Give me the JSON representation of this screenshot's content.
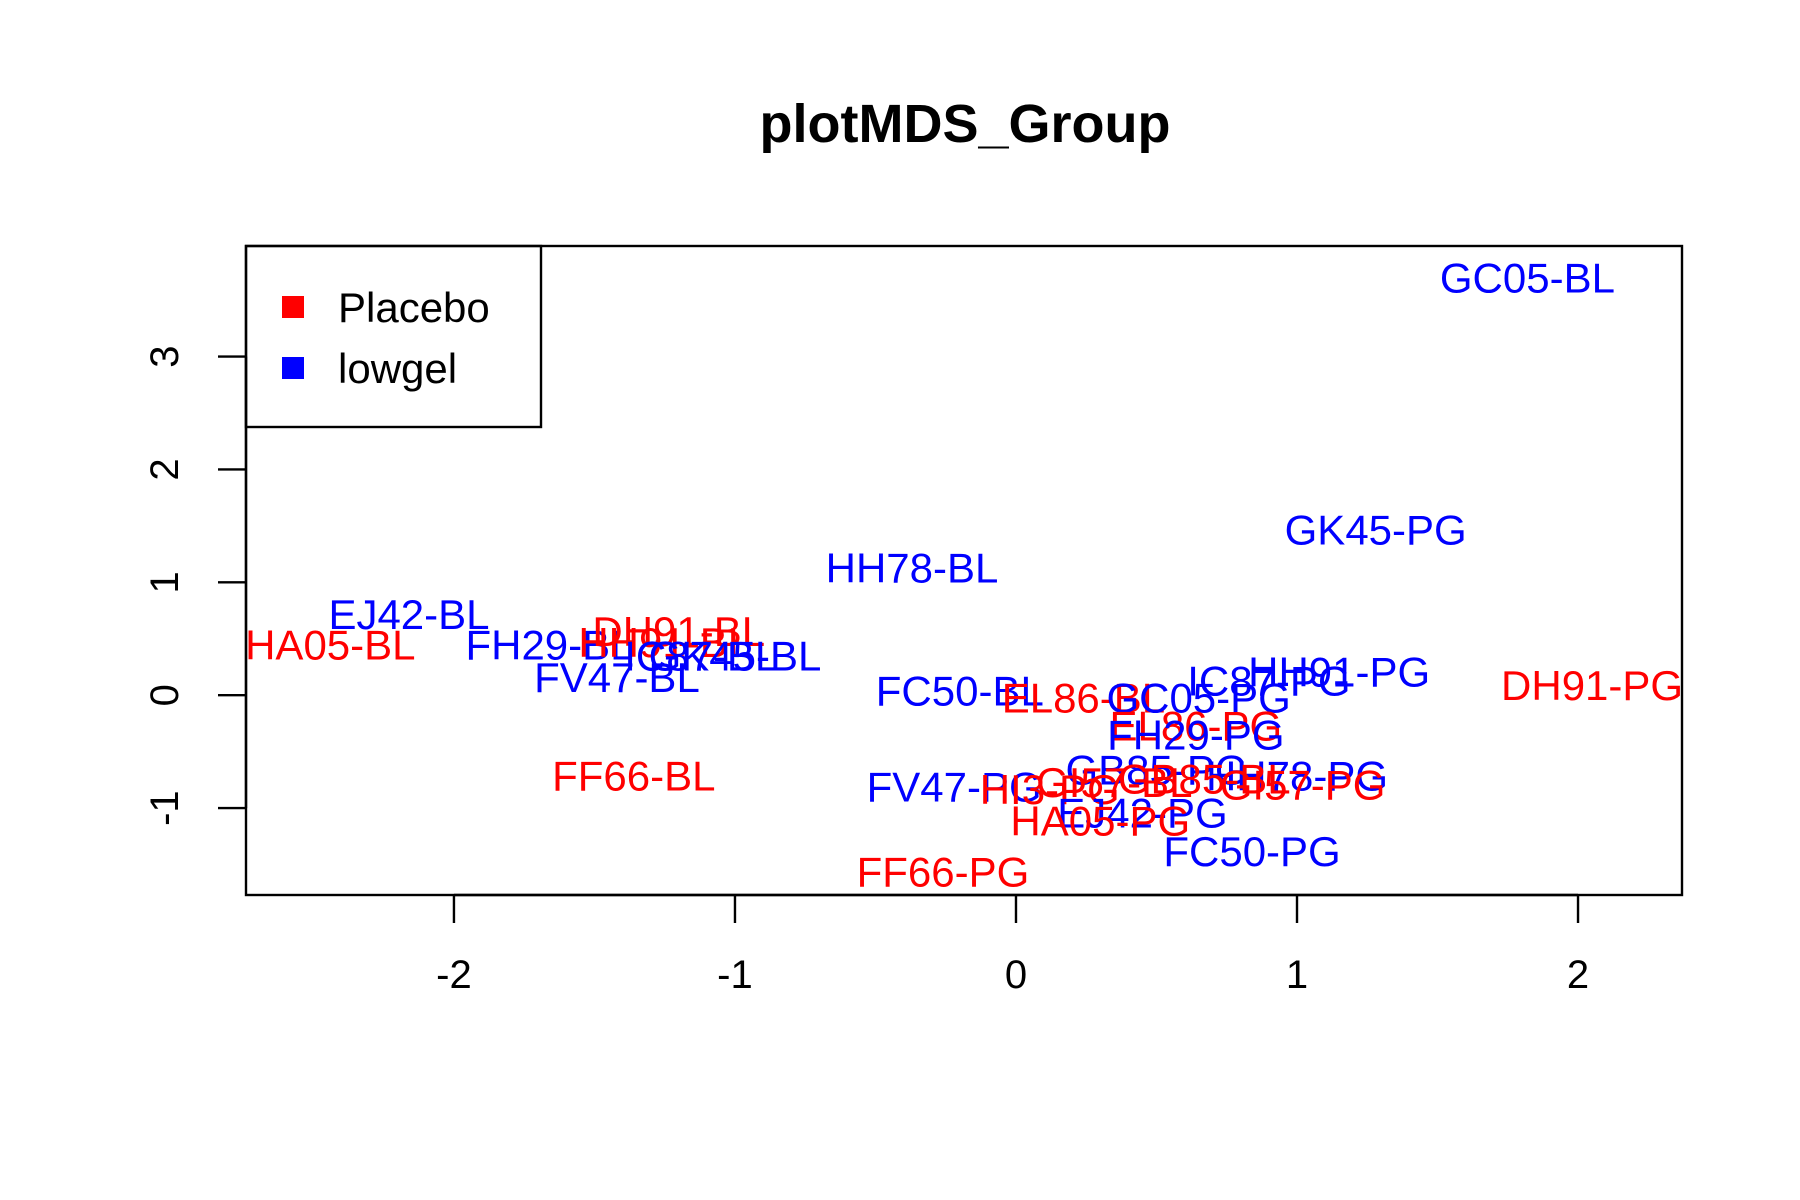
{
  "chart_data": {
    "type": "scatter",
    "title": "plotMDS_Group",
    "xlabel": "",
    "ylabel": "",
    "xlim": [
      -2.74,
      2.37
    ],
    "ylim": [
      -1.77,
      3.98
    ],
    "x_ticks": [
      -2,
      -1,
      0,
      1,
      2
    ],
    "y_ticks": [
      -1,
      0,
      1,
      2,
      3
    ],
    "grid": false,
    "legend": {
      "placement": "top-left",
      "entries": [
        {
          "label": "Placebo",
          "color": "#ff0000"
        },
        {
          "label": "lowgel",
          "color": "#0000ff"
        }
      ]
    },
    "groups": {
      "Placebo": "#ff0000",
      "lowgel": "#0000ff"
    },
    "points": [
      {
        "label": "GC05-BL",
        "x": 1.82,
        "y": 3.7,
        "group": "lowgel"
      },
      {
        "label": "GK45-PG",
        "x": 1.28,
        "y": 1.47,
        "group": "lowgel"
      },
      {
        "label": "HH78-BL",
        "x": -0.37,
        "y": 1.13,
        "group": "lowgel"
      },
      {
        "label": "EJ42-BL",
        "x": -2.16,
        "y": 0.72,
        "group": "lowgel"
      },
      {
        "label": "HA05-BL",
        "x": -2.44,
        "y": 0.45,
        "group": "Placebo"
      },
      {
        "label": "FH29-BL",
        "x": -1.66,
        "y": 0.45,
        "group": "lowgel"
      },
      {
        "label": "DH91-BL",
        "x": -1.2,
        "y": 0.57,
        "group": "Placebo"
      },
      {
        "label": "HH91-BL",
        "x": -1.25,
        "y": 0.47,
        "group": "Placebo"
      },
      {
        "label": "IC87-BL",
        "x": -1.12,
        "y": 0.35,
        "group": "lowgel"
      },
      {
        "label": "GK45-BL",
        "x": -1.0,
        "y": 0.35,
        "group": "lowgel"
      },
      {
        "label": "FV47-BL",
        "x": -1.42,
        "y": 0.16,
        "group": "lowgel"
      },
      {
        "label": "FC50-BL",
        "x": -0.2,
        "y": 0.04,
        "group": "lowgel"
      },
      {
        "label": "EL86-BL",
        "x": 0.24,
        "y": -0.02,
        "group": "Placebo"
      },
      {
        "label": "GC05-PG",
        "x": 0.65,
        "y": -0.02,
        "group": "lowgel"
      },
      {
        "label": "IC87-PG",
        "x": 0.9,
        "y": 0.13,
        "group": "lowgel"
      },
      {
        "label": "HH91-PG",
        "x": 1.15,
        "y": 0.21,
        "group": "lowgel"
      },
      {
        "label": "DH91-PG",
        "x": 2.05,
        "y": 0.09,
        "group": "Placebo"
      },
      {
        "label": "EL86-PG",
        "x": 0.64,
        "y": -0.27,
        "group": "Placebo"
      },
      {
        "label": "FH29-PG",
        "x": 0.64,
        "y": -0.35,
        "group": "lowgel"
      },
      {
        "label": "FF66-BL",
        "x": -1.36,
        "y": -0.71,
        "group": "Placebo"
      },
      {
        "label": "GB85-PG",
        "x": 0.5,
        "y": -0.66,
        "group": "lowgel"
      },
      {
        "label": "HH78-PG",
        "x": 1.0,
        "y": -0.71,
        "group": "lowgel"
      },
      {
        "label": "GI57-PG",
        "x": 1.02,
        "y": -0.79,
        "group": "Placebo"
      },
      {
        "label": "GB85-BL",
        "x": 0.67,
        "y": -0.74,
        "group": "Placebo"
      },
      {
        "label": "GI57-BL",
        "x": 0.35,
        "y": -0.77,
        "group": "Placebo"
      },
      {
        "label": "FV47-PG",
        "x": -0.22,
        "y": -0.81,
        "group": "lowgel"
      },
      {
        "label": "HI3-PG",
        "x": 0.12,
        "y": -0.83,
        "group": "Placebo"
      },
      {
        "label": "EJ42-PG",
        "x": 0.45,
        "y": -1.04,
        "group": "lowgel"
      },
      {
        "label": "HA05-PG",
        "x": 0.3,
        "y": -1.11,
        "group": "Placebo"
      },
      {
        "label": "FC50-PG",
        "x": 0.84,
        "y": -1.38,
        "group": "lowgel"
      },
      {
        "label": "FF66-PG",
        "x": -0.26,
        "y": -1.56,
        "group": "Placebo"
      }
    ]
  }
}
